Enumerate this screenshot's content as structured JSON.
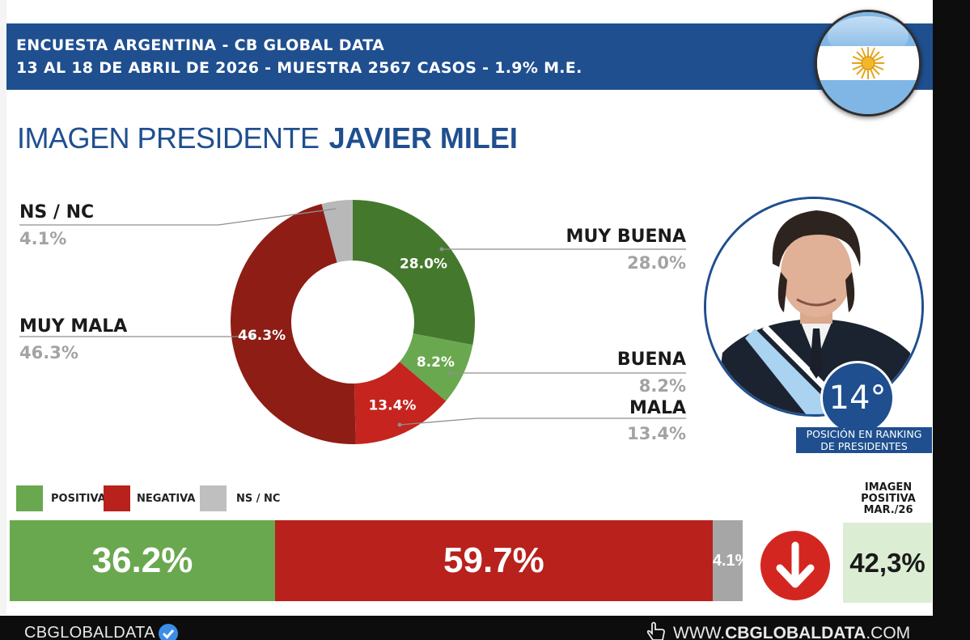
{
  "header": {
    "line1": "ENCUESTA ARGENTINA - CB GLOBAL DATA",
    "line2": "13 AL 18 DE ABRIL DE 2026 - MUESTRA 2567 CASOS - 1.9% M.E."
  },
  "title": {
    "part1": "IMAGEN PRESIDENTE",
    "part2": "JAVIER MILEI"
  },
  "chart_data": [
    {
      "type": "pie",
      "slices": [
        {
          "label": "MUY BUENA",
          "value": 28.0,
          "display": "28.0%",
          "color": "#44782d"
        },
        {
          "label": "BUENA",
          "value": 8.2,
          "display": "8.2%",
          "color": "#6aa84f"
        },
        {
          "label": "MALA",
          "value": 13.4,
          "display": "13.4%",
          "color": "#c5241f"
        },
        {
          "label": "MUY MALA",
          "value": 46.3,
          "display": "46.3%",
          "color": "#8e1d16"
        },
        {
          "label": "NS / NC",
          "value": 4.1,
          "display": "4.1%",
          "color": "#b8b8b8"
        }
      ]
    },
    {
      "type": "bar",
      "orientation": "horizontal-stacked",
      "categories": [
        "POSITIVA",
        "NEGATIVA",
        "NS / NC"
      ],
      "values": [
        36.2,
        59.7,
        4.1
      ],
      "display": [
        "36.2%",
        "59.7%",
        "4.1%"
      ],
      "colors": [
        "#6aa84f",
        "#b8211c",
        "#a6a6a6"
      ]
    }
  ],
  "labels": {
    "ns_nc_name": "NS / NC",
    "ns_nc_pct": "4.1%",
    "muy_mala_name": "MUY MALA",
    "muy_mala_pct": "46.3%",
    "muy_buena_name": "MUY BUENA",
    "muy_buena_pct": "28.0%",
    "buena_name": "BUENA",
    "buena_pct": "8.2%",
    "mala_name": "MALA",
    "mala_pct": "13.4%"
  },
  "ranking": {
    "position": "14°",
    "caption_line1": "POSICIÓN EN RANKING",
    "caption_line2": "DE PRESIDENTES"
  },
  "legend": {
    "positiva": "POSITIVA",
    "negativa": "NEGATIVA",
    "ns_nc": "NS / NC"
  },
  "previous": {
    "label_line1": "IMAGEN",
    "label_line2": "POSITIVA",
    "label_line3": "MAR./26",
    "value": "42,3%"
  },
  "footer": {
    "left": "CBGLOBALDATA",
    "right_prefix": "WWW.",
    "right_bold": "CBGLOBALDATA",
    "right_suffix": ".COM"
  },
  "icons": [
    "argentina-flag-icon",
    "down-arrow-icon",
    "verified-check-icon",
    "pointer-hand-icon"
  ]
}
